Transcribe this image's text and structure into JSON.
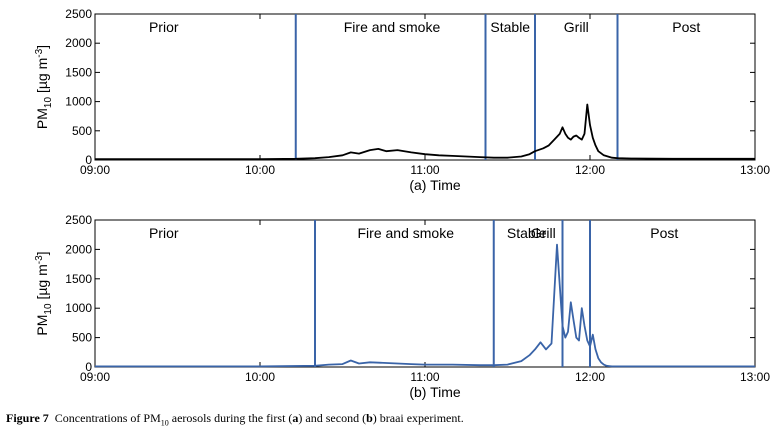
{
  "chart_data": [
    {
      "type": "line",
      "panel": "(a)",
      "xlabel": "Time",
      "ylabel": "PM",
      "ylabel_sub": "10",
      "ylabel_unit": "[µg m",
      "ylabel_unit_sup": "-3",
      "ylabel_unit_end": "]",
      "xlim": [
        "09:00",
        "13:00"
      ],
      "ylim": [
        0,
        2500
      ],
      "xticks": [
        "09:00",
        "10:00",
        "11:00",
        "12:00",
        "13:00"
      ],
      "yticks": [
        0,
        500,
        1000,
        1500,
        2000,
        2500
      ],
      "line_color": "#000000",
      "phase_line_color": "#3a64a8",
      "phase_boundaries": [
        "10:13",
        "11:22",
        "11:40",
        "12:10"
      ],
      "phases": [
        {
          "label": "Prior",
          "center": "09:25"
        },
        {
          "label": "Fire and smoke",
          "center": "10:48"
        },
        {
          "label": "Stable",
          "center": "11:31"
        },
        {
          "label": "Grill",
          "center": "11:55"
        },
        {
          "label": "Post",
          "center": "12:35"
        }
      ],
      "series": [
        {
          "x": [
            "09:00",
            "09:20",
            "09:40",
            "10:00",
            "10:13",
            "10:20",
            "10:25",
            "10:30",
            "10:33",
            "10:36",
            "10:40",
            "10:43",
            "10:46",
            "10:50",
            "10:55",
            "11:00",
            "11:05",
            "11:10",
            "11:15",
            "11:20",
            "11:25",
            "11:30",
            "11:35",
            "11:38",
            "11:40",
            "11:43",
            "11:45",
            "11:47",
            "11:49",
            "11:50",
            "11:51",
            "11:52",
            "11:53",
            "11:54",
            "11:55",
            "11:56",
            "11:57",
            "11:58",
            "11:59",
            "12:00",
            "12:01",
            "12:02",
            "12:03",
            "12:05",
            "12:08",
            "12:10",
            "12:15",
            "12:30",
            "12:45",
            "13:00"
          ],
          "y": [
            15,
            15,
            15,
            15,
            20,
            30,
            50,
            80,
            130,
            110,
            170,
            190,
            150,
            170,
            130,
            100,
            80,
            70,
            60,
            50,
            40,
            40,
            60,
            100,
            150,
            200,
            250,
            350,
            450,
            560,
            450,
            380,
            350,
            400,
            420,
            380,
            350,
            450,
            950,
            600,
            380,
            250,
            150,
            80,
            40,
            30,
            25,
            20,
            20,
            20
          ]
        }
      ]
    },
    {
      "type": "line",
      "panel": "(b)",
      "xlabel": "Time",
      "ylabel": "PM",
      "ylabel_sub": "10",
      "ylabel_unit": "[µg m",
      "ylabel_unit_sup": "-3",
      "ylabel_unit_end": "]",
      "xlim": [
        "09:00",
        "13:00"
      ],
      "ylim": [
        0,
        2500
      ],
      "xticks": [
        "09:00",
        "10:00",
        "11:00",
        "12:00",
        "13:00"
      ],
      "yticks": [
        0,
        500,
        1000,
        1500,
        2000,
        2500
      ],
      "line_color": "#3a64a8",
      "phase_line_color": "#3a64a8",
      "phase_boundaries": [
        "10:20",
        "11:25",
        "11:50",
        "12:00"
      ],
      "phases": [
        {
          "label": "Prior",
          "center": "09:25"
        },
        {
          "label": "Fire and smoke",
          "center": "10:53"
        },
        {
          "label": "Stable",
          "center": "11:37"
        },
        {
          "label": "Grill",
          "center": "11:43"
        },
        {
          "label": "Post",
          "center": "12:27"
        }
      ],
      "series": [
        {
          "x": [
            "09:00",
            "09:30",
            "10:00",
            "10:20",
            "10:25",
            "10:30",
            "10:33",
            "10:36",
            "10:40",
            "10:45",
            "10:50",
            "10:55",
            "11:00",
            "11:10",
            "11:20",
            "11:25",
            "11:30",
            "11:35",
            "11:38",
            "11:40",
            "11:42",
            "11:44",
            "11:46",
            "11:48",
            "11:50",
            "11:51",
            "11:52",
            "11:53",
            "11:54",
            "11:55",
            "11:56",
            "11:57",
            "11:58",
            "11:59",
            "12:00",
            "12:01",
            "12:02",
            "12:03",
            "12:04",
            "12:05",
            "12:06",
            "12:07",
            "12:08",
            "12:09",
            "12:10",
            "12:12",
            "12:15",
            "12:30",
            "13:00"
          ],
          "y": [
            10,
            10,
            10,
            20,
            40,
            50,
            110,
            60,
            80,
            70,
            60,
            50,
            40,
            40,
            30,
            30,
            40,
            100,
            200,
            300,
            420,
            300,
            400,
            2080,
            700,
            500,
            600,
            1100,
            800,
            500,
            450,
            1000,
            700,
            450,
            350,
            550,
            300,
            150,
            80,
            40,
            20,
            15,
            10,
            10,
            10,
            10,
            10,
            10,
            10
          ]
        }
      ]
    }
  ],
  "caption": {
    "label": "Figure 7",
    "text_1": "Concentrations of PM",
    "sub": "10",
    "text_2": " aerosols during the first (",
    "a": "a",
    "text_3": ") and second (",
    "b": "b",
    "text_4": ") braai experiment."
  }
}
